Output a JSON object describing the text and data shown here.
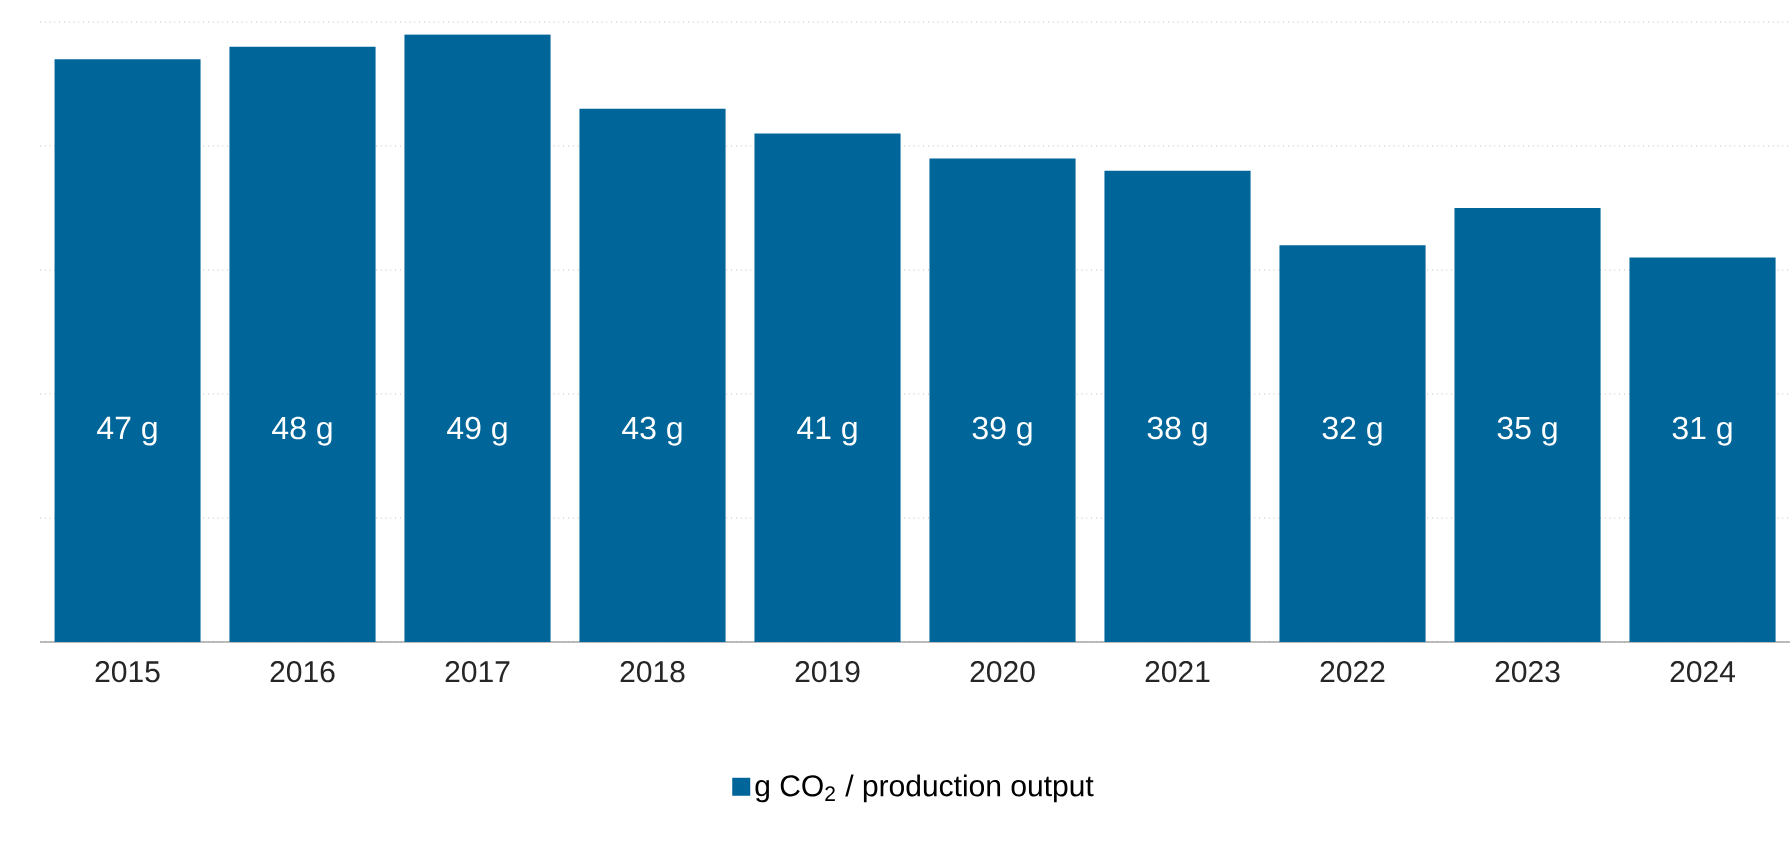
{
  "chart_data": {
    "type": "bar",
    "categories": [
      "2015",
      "2016",
      "2017",
      "2018",
      "2019",
      "2020",
      "2021",
      "2022",
      "2023",
      "2024"
    ],
    "series": [
      {
        "name": "g CO$_{2}$ / production output",
        "color": "#006699",
        "values": [
          47,
          48,
          49,
          43,
          41,
          39,
          38,
          32,
          35,
          31
        ],
        "value_labels": [
          "47 g",
          "48 g",
          "49 g",
          "43 g",
          "41 g",
          "39 g",
          "38 g",
          "32 g",
          "35 g",
          "31 g"
        ]
      }
    ],
    "ylim": [
      0,
      50
    ],
    "yticks": [
      {
        "value": 0,
        "label": null
      },
      {
        "value": 10,
        "label": null
      },
      {
        "value": 20,
        "label": null
      },
      {
        "value": 30,
        "label": null
      },
      {
        "value": 40,
        "label": null
      },
      {
        "value": 50,
        "label": null
      }
    ],
    "tick_labels": "x",
    "grid": "y",
    "legend": "bottom"
  }
}
